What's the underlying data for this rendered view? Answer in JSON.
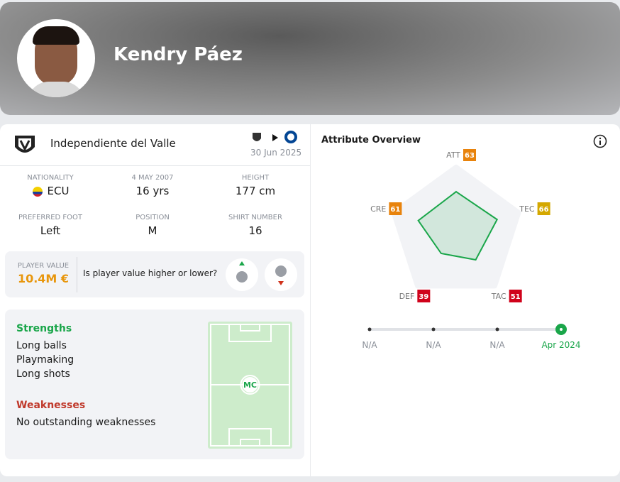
{
  "header": {
    "name": "Kendry Páez"
  },
  "club": {
    "name": "Independiente del Valle",
    "date": "30 Jun 2025"
  },
  "info": {
    "nationality_label": "NATIONALITY",
    "nationality": "ECU",
    "birth_label": "4 MAY 2007",
    "age": "16 yrs",
    "height_label": "HEIGHT",
    "height": "177 cm",
    "foot_label": "PREFERRED FOOT",
    "foot": "Left",
    "position_label": "POSITION",
    "position": "M",
    "shirt_label": "SHIRT NUMBER",
    "shirt": "16"
  },
  "value": {
    "label": "PLAYER VALUE",
    "amount": "10.4M €",
    "question": "Is player value higher or lower?"
  },
  "strengths": {
    "title": "Strengths",
    "items": [
      "Long balls",
      "Playmaking",
      "Long shots"
    ]
  },
  "weaknesses": {
    "title": "Weaknesses",
    "items": [
      "No outstanding weaknesses"
    ]
  },
  "pitch": {
    "position": "MC"
  },
  "attributes": {
    "title": "Attribute Overview",
    "items": [
      {
        "name": "ATT",
        "value": 63,
        "color": "#e8830c"
      },
      {
        "name": "TEC",
        "value": 66,
        "color": "#d4a800"
      },
      {
        "name": "TAC",
        "value": 51,
        "color": "#d0021b"
      },
      {
        "name": "DEF",
        "value": 39,
        "color": "#d0021b"
      },
      {
        "name": "CRE",
        "value": 61,
        "color": "#e8830c"
      }
    ],
    "timeline": [
      "N/A",
      "N/A",
      "N/A",
      "Apr 2024"
    ]
  }
}
